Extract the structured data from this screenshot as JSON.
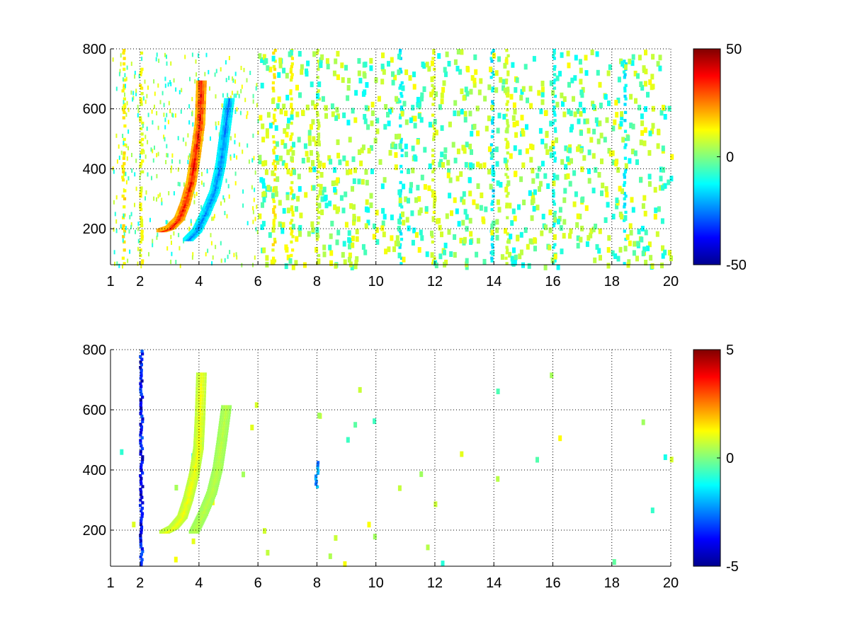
{
  "chart_data": [
    {
      "type": "heatmap",
      "title": "",
      "xlabel": "",
      "ylabel": "",
      "xlim": [
        1,
        20
      ],
      "ylim": [
        80,
        800
      ],
      "xticks": [
        "1",
        "2",
        "4",
        "6",
        "8",
        "10",
        "12",
        "14",
        "16",
        "18",
        "20"
      ],
      "yticks": [
        "200",
        "400",
        "600",
        "800"
      ],
      "grid": true,
      "colormap": "jet",
      "clim": [
        -50,
        50
      ],
      "colorbar_ticks": [
        "50",
        "0",
        "-50"
      ],
      "features": [
        {
          "kind": "ridge",
          "value": 38,
          "points": [
            [
              2.7,
              200
            ],
            [
              3.0,
              210
            ],
            [
              3.3,
              240
            ],
            [
              3.5,
              290
            ],
            [
              3.7,
              360
            ],
            [
              3.85,
              450
            ],
            [
              4.0,
              560
            ],
            [
              4.05,
              700
            ]
          ]
        },
        {
          "kind": "ridge",
          "value": -25,
          "points": [
            [
              3.6,
              170
            ],
            [
              3.9,
              200
            ],
            [
              4.2,
              260
            ],
            [
              4.5,
              330
            ],
            [
              4.7,
              420
            ],
            [
              4.85,
              530
            ],
            [
              5.0,
              640
            ]
          ]
        },
        {
          "kind": "column",
          "x": 1.4,
          "value": 15
        },
        {
          "kind": "column",
          "x": 2.0,
          "value": 12
        },
        {
          "kind": "column",
          "x": 6.5,
          "value": 14
        },
        {
          "kind": "column",
          "x": 7.1,
          "value": 12
        },
        {
          "kind": "column",
          "x": 8.0,
          "value": 8
        },
        {
          "kind": "column",
          "x": 10.8,
          "value": -14
        },
        {
          "kind": "column",
          "x": 11.9,
          "value": 10
        },
        {
          "kind": "column",
          "x": 13.9,
          "value": -16
        },
        {
          "kind": "column",
          "x": 14.4,
          "value": 8
        },
        {
          "kind": "column",
          "x": 16.0,
          "value": -12
        },
        {
          "kind": "column",
          "x": 18.4,
          "value": -14
        }
      ]
    },
    {
      "type": "heatmap",
      "title": "",
      "xlabel": "",
      "ylabel": "",
      "xlim": [
        1,
        20
      ],
      "ylim": [
        80,
        800
      ],
      "xticks": [
        "1",
        "2",
        "4",
        "6",
        "8",
        "10",
        "12",
        "14",
        "16",
        "18",
        "20"
      ],
      "yticks": [
        "200",
        "400",
        "600",
        "800"
      ],
      "grid": true,
      "colormap": "jet",
      "clim": [
        -5,
        5
      ],
      "colorbar_ticks": [
        "5",
        "0",
        "-5"
      ],
      "features": [
        {
          "kind": "ridge",
          "value": 1.2,
          "points": [
            [
              2.8,
              200
            ],
            [
              3.1,
              215
            ],
            [
              3.4,
              250
            ],
            [
              3.6,
              310
            ],
            [
              3.8,
              390
            ],
            [
              3.95,
              480
            ],
            [
              4.0,
              580
            ],
            [
              4.05,
              730
            ]
          ]
        },
        {
          "kind": "ridge",
          "value": 0.6,
          "points": [
            [
              3.8,
              200
            ],
            [
              4.1,
              260
            ],
            [
              4.4,
              330
            ],
            [
              4.6,
              410
            ],
            [
              4.75,
              510
            ],
            [
              4.9,
              620
            ]
          ]
        },
        {
          "kind": "column",
          "x": 7.95,
          "ymin": 340,
          "ymax": 430,
          "value": -2.5
        },
        {
          "kind": "column",
          "x": 2.0,
          "ymin": 80,
          "ymax": 800,
          "value": -4
        }
      ]
    }
  ]
}
